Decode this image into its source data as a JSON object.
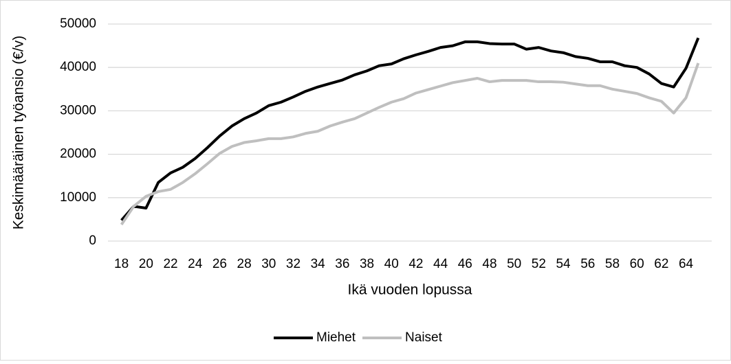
{
  "chart_data": {
    "type": "line",
    "x_label": "Ikä vuoden lopussa",
    "y_label": "Keskimääräinen työansio (€/v)",
    "x": [
      18,
      19,
      20,
      21,
      22,
      23,
      24,
      25,
      26,
      27,
      28,
      29,
      30,
      31,
      32,
      33,
      34,
      35,
      36,
      37,
      38,
      39,
      40,
      41,
      42,
      43,
      44,
      45,
      46,
      47,
      48,
      49,
      50,
      51,
      52,
      53,
      54,
      55,
      56,
      57,
      58,
      59,
      60,
      61,
      62,
      63,
      64,
      65
    ],
    "series": [
      {
        "name": "Miehet",
        "color": "#000000",
        "values": [
          4800,
          8000,
          7600,
          13500,
          15700,
          17000,
          19000,
          21500,
          24200,
          26500,
          28200,
          29500,
          31200,
          32000,
          33200,
          34500,
          35500,
          36300,
          37100,
          38300,
          39200,
          40400,
          40800,
          42000,
          42900,
          43700,
          44600,
          45000,
          45900,
          45900,
          45500,
          45400,
          45400,
          44200,
          44600,
          43800,
          43400,
          42500,
          42100,
          41300,
          41300,
          40400,
          40000,
          38500,
          36300,
          35500,
          39800,
          46800
        ]
      },
      {
        "name": "Naiset",
        "color": "#bfbfbf",
        "values": [
          3800,
          8000,
          10300,
          11400,
          11900,
          13500,
          15500,
          17800,
          20200,
          21800,
          22700,
          23100,
          23600,
          23600,
          24000,
          24800,
          25300,
          26500,
          27400,
          28200,
          29500,
          30800,
          32000,
          32800,
          34100,
          34900,
          35700,
          36500,
          37000,
          37500,
          36700,
          37000,
          37000,
          37000,
          36700,
          36700,
          36600,
          36200,
          35800,
          35800,
          35000,
          34500,
          34000,
          33000,
          32200,
          29500,
          33000,
          41000
        ]
      }
    ],
    "xlim": [
      16.9,
      66.1
    ],
    "xticks": [
      18,
      20,
      22,
      24,
      26,
      28,
      30,
      32,
      34,
      36,
      38,
      40,
      42,
      44,
      46,
      48,
      50,
      52,
      54,
      56,
      58,
      60,
      62,
      64
    ],
    "ylim": [
      0,
      50000
    ],
    "yticks": [
      0,
      10000,
      20000,
      30000,
      40000,
      50000
    ],
    "grid": true,
    "legend": "bottom"
  }
}
